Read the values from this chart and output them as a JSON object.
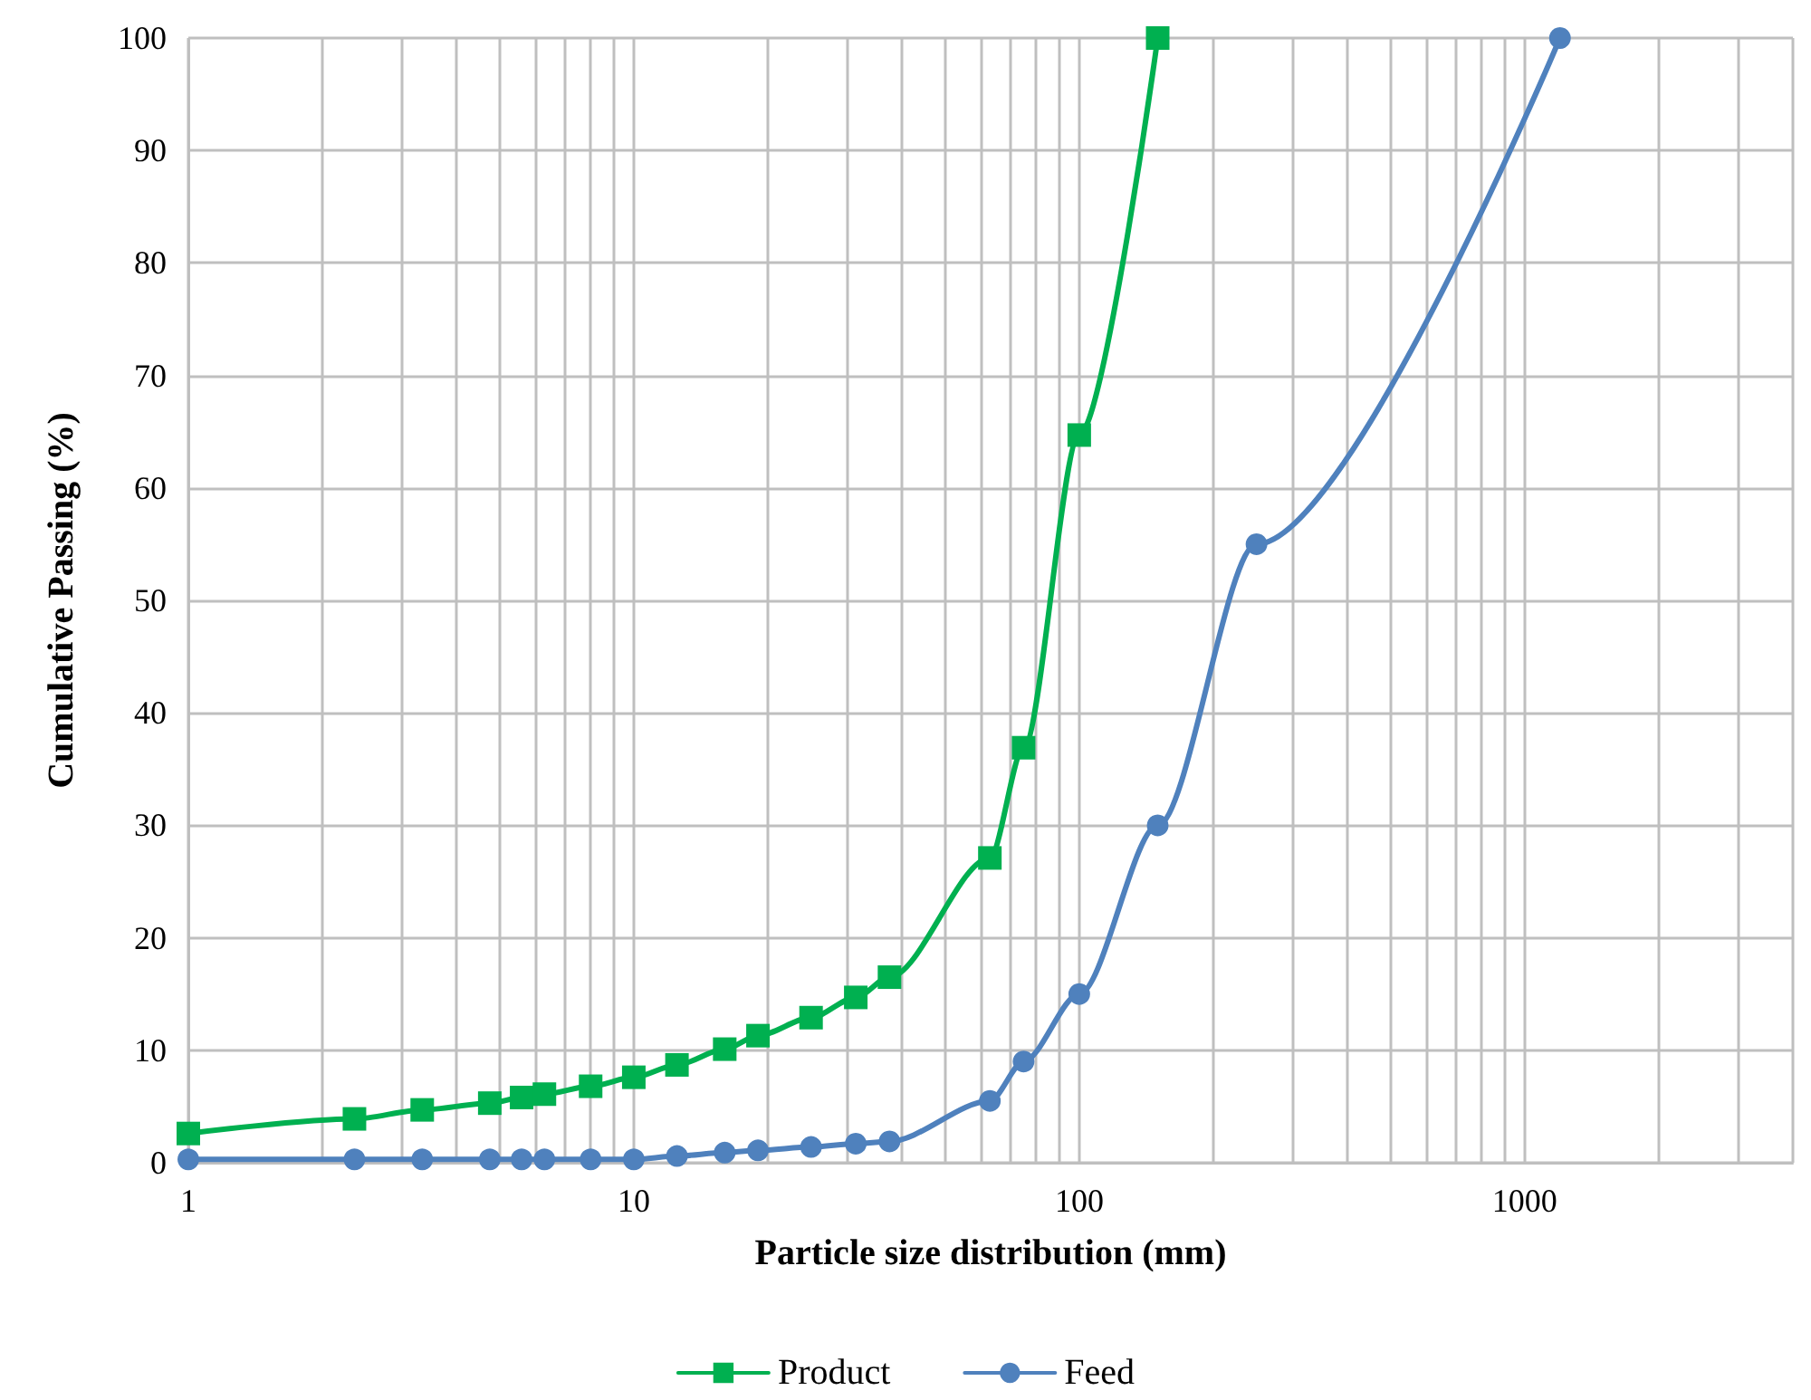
{
  "chart_data": {
    "type": "line",
    "xlabel": "Particle size distribution (mm)",
    "ylabel": "Cumulative Passing (%)",
    "log": "x",
    "grid": true,
    "legend": "bottom",
    "line_style": "solid",
    "xlim": [
      1,
      4000
    ],
    "ylim": [
      0,
      100
    ],
    "xticks": [
      1,
      {
        "value": 2,
        "label": null
      },
      {
        "value": 3,
        "label": null
      },
      {
        "value": 4,
        "label": null
      },
      {
        "value": 5,
        "label": null
      },
      {
        "value": 6,
        "label": null
      },
      {
        "value": 7,
        "label": null
      },
      {
        "value": 8,
        "label": null
      },
      {
        "value": 9,
        "label": null
      },
      10,
      {
        "value": 20,
        "label": null
      },
      {
        "value": 30,
        "label": null
      },
      {
        "value": 40,
        "label": null
      },
      {
        "value": 50,
        "label": null
      },
      {
        "value": 60,
        "label": null
      },
      {
        "value": 70,
        "label": null
      },
      {
        "value": 80,
        "label": null
      },
      {
        "value": 90,
        "label": null
      },
      100,
      {
        "value": 200,
        "label": null
      },
      {
        "value": 300,
        "label": null
      },
      {
        "value": 400,
        "label": null
      },
      {
        "value": 500,
        "label": null
      },
      {
        "value": 600,
        "label": null
      },
      {
        "value": 700,
        "label": null
      },
      {
        "value": 800,
        "label": null
      },
      {
        "value": 900,
        "label": null
      },
      1000,
      {
        "value": 2000,
        "label": null
      },
      {
        "value": 3000,
        "label": null
      },
      {
        "value": 4000,
        "label": null
      }
    ],
    "yticks": [
      0,
      10,
      20,
      30,
      40,
      50,
      60,
      70,
      80,
      90,
      100
    ],
    "series": [
      {
        "name": "Product",
        "color": "#00b050",
        "marker": "square",
        "x": [
          1,
          2.36,
          3.35,
          4.75,
          5.6,
          6.3,
          8,
          10,
          12.5,
          16,
          19,
          25,
          31.5,
          37.5,
          63,
          75,
          100,
          150
        ],
        "values": [
          2.6,
          3.9,
          4.7,
          5.3,
          5.8,
          6.1,
          6.8,
          7.6,
          8.7,
          10.1,
          11.3,
          12.9,
          14.7,
          16.5,
          27.1,
          36.9,
          64.7,
          100
        ]
      },
      {
        "name": "Feed",
        "color": "#4f81bd",
        "marker": "circle",
        "x": [
          1,
          2.36,
          3.35,
          4.75,
          5.6,
          6.3,
          8,
          10,
          12.5,
          16,
          19,
          25,
          31.5,
          37.5,
          63,
          75,
          100,
          150,
          250,
          1200
        ],
        "values": [
          0.3,
          0.3,
          0.3,
          0.3,
          0.3,
          0.3,
          0.3,
          0.3,
          0.6,
          0.9,
          1.1,
          1.4,
          1.7,
          1.9,
          5.5,
          9,
          15,
          30,
          55,
          100
        ]
      }
    ]
  }
}
